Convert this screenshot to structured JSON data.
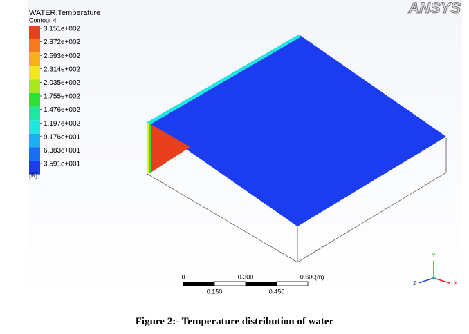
{
  "legend": {
    "title": "WATER.Temperature",
    "subtitle": "Contour 4",
    "levels": [
      {
        "label": "3.151e+002",
        "color": "#e8401c"
      },
      {
        "label": "2.872e+002",
        "color": "#f47a1c"
      },
      {
        "label": "2.593e+002",
        "color": "#f7b21a"
      },
      {
        "label": "2.314e+002",
        "color": "#f0e81c"
      },
      {
        "label": "2.035e+002",
        "color": "#a8e81c"
      },
      {
        "label": "1.755e+002",
        "color": "#2ee03a"
      },
      {
        "label": "1.476e+002",
        "color": "#1ce8a0"
      },
      {
        "label": "1.197e+002",
        "color": "#1ce8e0"
      },
      {
        "label": "9.176e+001",
        "color": "#1cb0f0"
      },
      {
        "label": "6.383e+001",
        "color": "#1c6ef0"
      },
      {
        "label": "3.591e+001",
        "color": "#1c3cf0"
      }
    ],
    "unit": "[K]"
  },
  "logo": "ANSYS",
  "scale_bar": {
    "top_labels": [
      "0",
      "0.300",
      "0.600"
    ],
    "unit": "(m)",
    "bottom_labels": [
      "0.150",
      "0.450"
    ]
  },
  "triad": {
    "x": "X",
    "y": "Y",
    "z": "Z"
  },
  "caption": "Figure 2:- Temperature distribution of water"
}
